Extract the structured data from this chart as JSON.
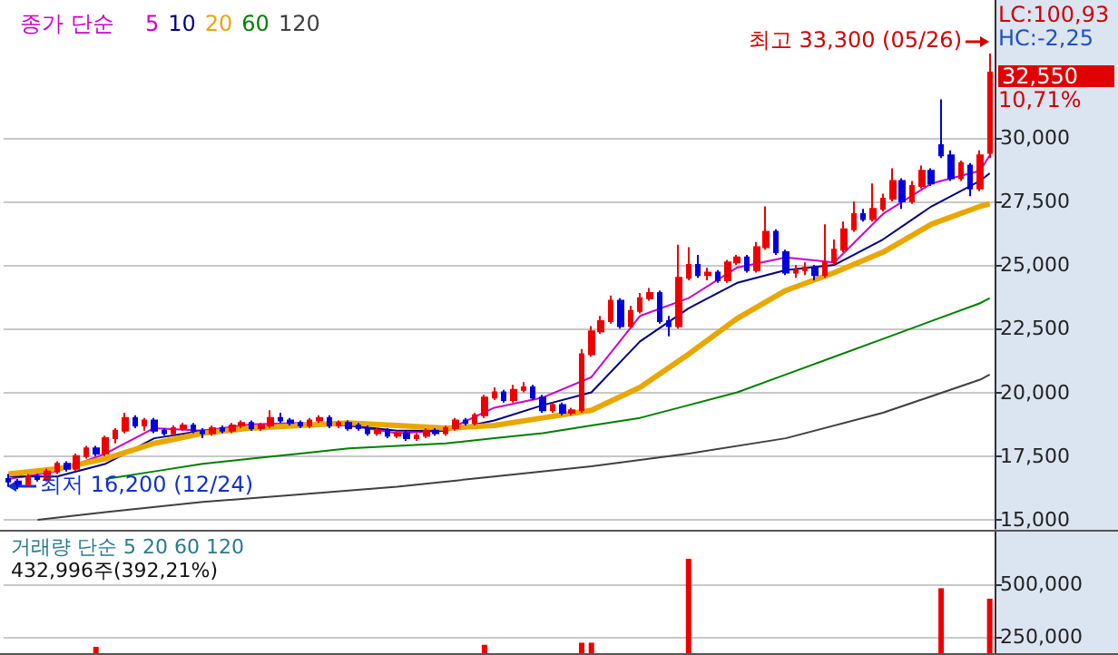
{
  "chart_data": [
    {
      "type": "candlestick",
      "legend_title": "종가 단순",
      "legend": "top left",
      "grid": "y",
      "tick_labels": "y",
      "categories": [
        null,
        null,
        null,
        null,
        null,
        null,
        null,
        null,
        null,
        null,
        null,
        null,
        null,
        null,
        null,
        null,
        null,
        null,
        null,
        null,
        null,
        null,
        null,
        null,
        null,
        null,
        null,
        null,
        null,
        null,
        null,
        null,
        null,
        null,
        null,
        null,
        null,
        null,
        null,
        null,
        null,
        null,
        null,
        null,
        null,
        null,
        null,
        null,
        null,
        null,
        null,
        null,
        null,
        null,
        null,
        null,
        null,
        null,
        null,
        null,
        null,
        null,
        null,
        null,
        null,
        null,
        null,
        null,
        null,
        null,
        null,
        null,
        null,
        null,
        null,
        null,
        null,
        null,
        null,
        null,
        null,
        null,
        null,
        null,
        null,
        null,
        null,
        null,
        null,
        null,
        null,
        null,
        null,
        null,
        null,
        null,
        null,
        null,
        null,
        null,
        null,
        null
      ],
      "ylim": [
        14650,
        35400
      ],
      "yticks": [
        {
          "value": 15000,
          "label": "15,000"
        },
        {
          "value": 17500,
          "label": "17,500"
        },
        {
          "value": 20000,
          "label": "20,000"
        },
        {
          "value": 22500,
          "label": "22,500"
        },
        {
          "value": 25000,
          "label": "25,000"
        },
        {
          "value": 27500,
          "label": "27,500"
        },
        {
          "value": 30000,
          "label": "30,000"
        }
      ],
      "annotations": [
        "LC:100,93",
        "HC:-2,25",
        "32,550",
        "10,71%",
        "최고 33,300 (05/26)",
        "최저 16,200 (12/24)"
      ],
      "series": [
        {
          "type": "candlestick",
          "colors": [
            "#0000dd",
            "#0000dd",
            "#ee0000",
            "#0000dd",
            "#ee0000",
            "#ee0000",
            "#0000dd",
            "#ee0000",
            "#ee0000",
            "#0000dd",
            "#ee0000",
            "#ee0000",
            "#ee0000",
            "#0000dd",
            "#ee0000",
            "#0000dd",
            "#0000dd",
            "#ee0000",
            "#ee0000",
            "#0000dd",
            "#0000dd",
            "#ee0000",
            "#0000dd",
            "#ee0000",
            "#ee0000",
            "#0000dd",
            "#ee0000",
            "#ee0000",
            "#0000dd",
            "#0000dd",
            "#0000dd",
            "#ee0000",
            "#ee0000",
            "#0000dd",
            "#ee0000",
            "#0000dd",
            "#0000dd",
            "#0000dd",
            "#ee0000",
            "#0000dd",
            "#ee0000",
            "#0000dd",
            "#ee0000",
            "#ee0000",
            "#0000dd",
            "#ee0000",
            "#ee0000",
            "#0000dd",
            "#ee0000",
            "#ee0000",
            "#ee0000",
            "#0000dd",
            "#ee0000",
            "#ee0000",
            "#0000dd",
            "#0000dd",
            "#ee0000",
            "#0000dd",
            "#ee0000",
            "#ee0000",
            "#ee0000",
            "#ee0000",
            "#ee0000",
            "#0000dd",
            "#ee0000",
            "#ee0000",
            "#ee0000",
            "#0000dd",
            "#0000dd",
            "#ee0000",
            "#ee0000",
            "#0000dd",
            "#ee0000",
            "#0000dd",
            "#ee0000",
            "#ee0000",
            "#0000dd",
            "#ee0000",
            "#ee0000",
            "#0000dd",
            "#0000dd",
            "#ee0000",
            "#ee0000",
            "#0000dd",
            "#ee0000",
            "#ee0000",
            "#ee0000",
            "#ee0000",
            "#0000dd",
            "#ee0000",
            "#ee0000",
            "#ee0000",
            "#0000dd",
            "#ee0000",
            "#ee0000",
            "#0000dd",
            "#0000dd",
            "#0000dd",
            "#ee0000",
            "#0000dd",
            "#ee0000",
            "#ee0000"
          ],
          "ohlc": [
            [
              16600,
              16800,
              16300,
              16500
            ],
            [
              16500,
              16600,
              16200,
              16400
            ],
            [
              16400,
              16800,
              16300,
              16700
            ],
            [
              16700,
              16800,
              16500,
              16600
            ],
            [
              16600,
              17000,
              16500,
              16900
            ],
            [
              16900,
              17300,
              16800,
              17200
            ],
            [
              17200,
              17300,
              16900,
              17000
            ],
            [
              17000,
              17600,
              16900,
              17500
            ],
            [
              17500,
              17900,
              17400,
              17800
            ],
            [
              17800,
              17900,
              17500,
              17600
            ],
            [
              17600,
              18300,
              17500,
              18200
            ],
            [
              18200,
              18600,
              18000,
              18500
            ],
            [
              18500,
              19200,
              18400,
              19000
            ],
            [
              19000,
              19100,
              18600,
              18700
            ],
            [
              18700,
              19000,
              18500,
              18900
            ],
            [
              18900,
              19000,
              18400,
              18500
            ],
            [
              18500,
              18600,
              18300,
              18400
            ],
            [
              18400,
              18700,
              18300,
              18600
            ],
            [
              18600,
              18800,
              18500,
              18700
            ],
            [
              18700,
              18800,
              18400,
              18500
            ],
            [
              18500,
              18600,
              18200,
              18400
            ],
            [
              18400,
              18700,
              18300,
              18600
            ],
            [
              18600,
              18700,
              18400,
              18500
            ],
            [
              18500,
              18800,
              18400,
              18700
            ],
            [
              18700,
              18900,
              18600,
              18800
            ],
            [
              18800,
              18900,
              18500,
              18600
            ],
            [
              18600,
              18800,
              18500,
              18700
            ],
            [
              18700,
              19300,
              18600,
              19000
            ],
            [
              19000,
              19200,
              18800,
              18900
            ],
            [
              18900,
              19000,
              18700,
              18800
            ],
            [
              18800,
              18900,
              18600,
              18700
            ],
            [
              18700,
              19000,
              18600,
              18900
            ],
            [
              18900,
              19100,
              18800,
              19000
            ],
            [
              19000,
              19100,
              18600,
              18700
            ],
            [
              18700,
              18900,
              18600,
              18800
            ],
            [
              18800,
              18900,
              18500,
              18600
            ],
            [
              18700,
              18800,
              18500,
              18600
            ],
            [
              18600,
              18700,
              18300,
              18400
            ],
            [
              18400,
              18600,
              18300,
              18500
            ],
            [
              18500,
              18600,
              18200,
              18300
            ],
            [
              18300,
              18500,
              18200,
              18400
            ],
            [
              18400,
              18500,
              18100,
              18200
            ],
            [
              18200,
              18400,
              18100,
              18300
            ],
            [
              18300,
              18600,
              18200,
              18500
            ],
            [
              18500,
              18600,
              18300,
              18400
            ],
            [
              18400,
              18700,
              18300,
              18600
            ],
            [
              18600,
              19000,
              18500,
              18900
            ],
            [
              18900,
              19000,
              18700,
              18800
            ],
            [
              18800,
              19200,
              18700,
              19100
            ],
            [
              19100,
              19900,
              19000,
              19800
            ],
            [
              19800,
              20200,
              19700,
              20000
            ],
            [
              20000,
              20100,
              19600,
              19700
            ],
            [
              19700,
              20300,
              19600,
              20100
            ],
            [
              20100,
              20400,
              20000,
              20200
            ],
            [
              20200,
              20300,
              19700,
              19800
            ],
            [
              19800,
              19900,
              19200,
              19300
            ],
            [
              19300,
              19600,
              19200,
              19500
            ],
            [
              19500,
              19600,
              19100,
              19200
            ],
            [
              19200,
              19400,
              19100,
              19300
            ],
            [
              19300,
              21700,
              19200,
              21500
            ],
            [
              21500,
              22600,
              21400,
              22400
            ],
            [
              22400,
              23000,
              22300,
              22800
            ],
            [
              22800,
              23800,
              22700,
              23600
            ],
            [
              23600,
              23700,
              22500,
              22600
            ],
            [
              22600,
              23400,
              22500,
              23200
            ],
            [
              23200,
              23900,
              23100,
              23700
            ],
            [
              23700,
              24100,
              23600,
              23900
            ],
            [
              23900,
              24000,
              22700,
              22800
            ],
            [
              22800,
              23000,
              22200,
              22600
            ],
            [
              22600,
              25800,
              22500,
              24500
            ],
            [
              24500,
              25700,
              24400,
              25000
            ],
            [
              25000,
              25400,
              24500,
              24600
            ],
            [
              24600,
              24900,
              24400,
              24700
            ],
            [
              24700,
              24800,
              24300,
              24400
            ],
            [
              24400,
              25200,
              24300,
              25100
            ],
            [
              25100,
              25400,
              25000,
              25300
            ],
            [
              25300,
              25400,
              24700,
              24800
            ],
            [
              24800,
              25900,
              24700,
              25700
            ],
            [
              25700,
              27300,
              25600,
              26300
            ],
            [
              26300,
              26400,
              25400,
              25500
            ],
            [
              25500,
              25600,
              24600,
              24700
            ],
            [
              24700,
              25000,
              24500,
              24800
            ],
            [
              24800,
              25100,
              24600,
              24900
            ],
            [
              24900,
              25000,
              24400,
              24600
            ],
            [
              24600,
              26600,
              24500,
              25100
            ],
            [
              25100,
              26000,
              25000,
              25600
            ],
            [
              25600,
              26700,
              25500,
              26400
            ],
            [
              26400,
              27500,
              26300,
              27000
            ],
            [
              27000,
              27200,
              26700,
              26800
            ],
            [
              26800,
              28200,
              26700,
              27200
            ],
            [
              27200,
              27800,
              27100,
              27600
            ],
            [
              27600,
              28800,
              27500,
              28300
            ],
            [
              28300,
              28400,
              27200,
              27500
            ],
            [
              27500,
              28300,
              27400,
              28100
            ],
            [
              28100,
              28900,
              28000,
              28700
            ],
            [
              28700,
              28800,
              28100,
              28200
            ],
            [
              29700,
              31500,
              29200,
              29300
            ],
            [
              29300,
              29500,
              28300,
              28400
            ],
            [
              28400,
              29100,
              28300,
              29000
            ],
            [
              28900,
              29000,
              27700,
              28000
            ],
            [
              28000,
              29500,
              27900,
              29300
            ],
            [
              29400,
              33300,
              29200,
              32550
            ]
          ]
        },
        {
          "type": "line",
          "name": "5",
          "color": "#cc00cc",
          "values": [
            16600,
            null,
            null,
            null,
            null,
            16900,
            null,
            null,
            null,
            null,
            17600,
            null,
            null,
            null,
            null,
            18600,
            null,
            null,
            null,
            null,
            18500,
            null,
            null,
            null,
            null,
            18750,
            null,
            null,
            null,
            null,
            18800,
            null,
            null,
            null,
            null,
            18700,
            null,
            null,
            null,
            null,
            18400,
            null,
            null,
            null,
            null,
            18500,
            null,
            null,
            null,
            null,
            19400,
            null,
            null,
            null,
            null,
            19800,
            null,
            null,
            null,
            null,
            20600,
            null,
            null,
            null,
            null,
            23000,
            null,
            null,
            null,
            null,
            23700,
            null,
            null,
            null,
            null,
            24900,
            null,
            null,
            null,
            null,
            25300,
            null,
            null,
            null,
            null,
            25100,
            null,
            null,
            null,
            null,
            27000,
            null,
            null,
            null,
            null,
            28200,
            null,
            null,
            null,
            null,
            28700,
            29300
          ]
        },
        {
          "type": "line",
          "name": "10",
          "color": "#000080",
          "values": [
            16700,
            null,
            null,
            null,
            null,
            16700,
            null,
            null,
            null,
            null,
            17200,
            null,
            null,
            null,
            null,
            18200,
            null,
            null,
            null,
            null,
            18500,
            null,
            null,
            null,
            null,
            18600,
            null,
            null,
            null,
            null,
            18700,
            null,
            null,
            null,
            null,
            18700,
            null,
            null,
            null,
            null,
            18500,
            null,
            null,
            null,
            null,
            18500,
            null,
            null,
            null,
            null,
            18900,
            null,
            null,
            null,
            null,
            19500,
            null,
            null,
            null,
            null,
            20000,
            null,
            null,
            null,
            null,
            22000,
            null,
            null,
            null,
            null,
            23300,
            null,
            null,
            null,
            null,
            24300,
            null,
            null,
            null,
            null,
            24800,
            null,
            null,
            null,
            null,
            25000,
            null,
            null,
            null,
            null,
            26000,
            null,
            null,
            null,
            null,
            27300,
            null,
            null,
            null,
            null,
            28300,
            28600
          ]
        },
        {
          "type": "line",
          "name": "20",
          "color": "#e8a800",
          "values": [
            16800,
            null,
            null,
            null,
            null,
            17000,
            null,
            null,
            null,
            null,
            17400,
            null,
            null,
            null,
            null,
            18000,
            null,
            null,
            null,
            null,
            18400,
            null,
            null,
            null,
            null,
            18600,
            null,
            null,
            null,
            null,
            18700,
            null,
            null,
            null,
            null,
            18800,
            null,
            null,
            null,
            null,
            18700,
            null,
            null,
            null,
            null,
            18600,
            null,
            null,
            null,
            null,
            18700,
            null,
            null,
            null,
            null,
            19000,
            null,
            null,
            null,
            null,
            19300,
            null,
            null,
            null,
            null,
            20200,
            null,
            null,
            null,
            null,
            21500,
            null,
            null,
            null,
            null,
            22900,
            null,
            null,
            null,
            null,
            24000,
            null,
            null,
            null,
            null,
            24700,
            null,
            null,
            null,
            null,
            25500,
            null,
            null,
            null,
            null,
            26600,
            null,
            null,
            null,
            null,
            27300,
            27400
          ]
        },
        {
          "type": "line",
          "name": "60",
          "color": "#008000",
          "values": [
            null,
            null,
            null,
            null,
            null,
            null,
            null,
            null,
            null,
            null,
            16600,
            null,
            null,
            null,
            null,
            16900,
            null,
            null,
            null,
            null,
            17200,
            null,
            null,
            null,
            null,
            17400,
            null,
            null,
            null,
            null,
            17600,
            null,
            null,
            null,
            null,
            17800,
            null,
            null,
            null,
            null,
            17900,
            null,
            null,
            null,
            null,
            18000,
            null,
            null,
            null,
            null,
            18200,
            null,
            null,
            null,
            null,
            18400,
            null,
            null,
            null,
            null,
            18700,
            null,
            null,
            null,
            null,
            19000,
            null,
            null,
            null,
            null,
            19500,
            null,
            null,
            null,
            null,
            20000,
            null,
            null,
            null,
            null,
            20700,
            null,
            null,
            null,
            null,
            21400,
            null,
            null,
            null,
            null,
            22100,
            null,
            null,
            null,
            null,
            22800,
            null,
            null,
            null,
            null,
            23500,
            23700
          ]
        },
        {
          "type": "line",
          "name": "120",
          "color": "#404040",
          "values": [
            null,
            null,
            null,
            15000,
            null,
            null,
            null,
            null,
            null,
            null,
            15300,
            null,
            null,
            null,
            null,
            null,
            null,
            null,
            null,
            null,
            15700,
            null,
            null,
            null,
            null,
            null,
            null,
            null,
            null,
            null,
            16000,
            null,
            null,
            null,
            null,
            null,
            null,
            null,
            null,
            null,
            16300,
            null,
            null,
            null,
            null,
            null,
            null,
            null,
            null,
            null,
            16700,
            null,
            null,
            null,
            null,
            null,
            null,
            null,
            null,
            null,
            17100,
            null,
            null,
            null,
            null,
            null,
            null,
            null,
            null,
            null,
            17600,
            null,
            null,
            null,
            null,
            null,
            null,
            null,
            null,
            null,
            18200,
            null,
            null,
            null,
            null,
            null,
            null,
            null,
            null,
            null,
            19200,
            null,
            null,
            null,
            null,
            null,
            null,
            null,
            null,
            null,
            20500,
            20700
          ]
        }
      ]
    },
    {
      "type": "bar",
      "grid": "y",
      "tick_labels": "y",
      "categories": [
        null,
        null,
        null,
        null,
        null,
        null,
        null,
        null,
        null,
        null,
        null,
        null,
        null,
        null,
        null,
        null,
        null,
        null,
        null,
        null,
        null,
        null,
        null,
        null,
        null,
        null,
        null,
        null,
        null,
        null,
        null,
        null,
        null,
        null,
        null,
        null,
        null,
        null,
        null,
        null,
        null,
        null,
        null,
        null,
        null,
        null,
        null,
        null,
        null,
        null,
        null,
        null,
        null,
        null,
        null,
        null,
        null,
        null,
        null,
        null,
        null,
        null,
        null,
        null,
        null,
        null,
        null,
        null,
        null,
        null,
        null,
        null,
        null,
        null,
        null,
        null,
        null,
        null,
        null,
        null,
        null,
        null,
        null,
        null,
        null,
        null,
        null,
        null,
        null,
        null,
        null,
        null,
        null,
        null,
        null,
        null,
        null,
        null,
        null,
        null,
        null,
        null
      ],
      "ylim": [
        170000,
        750000
      ],
      "yticks": [
        {
          "value": 250000,
          "label": "250,000"
        },
        {
          "value": 500000,
          "label": "500,000"
        }
      ],
      "annotations": [
        "거래량 단순 5 20 60 120",
        "432,996주(392,21%)"
      ],
      "series": [
        {
          "type": "bar",
          "color": "#ee0000",
          "values": [
            null,
            null,
            null,
            null,
            null,
            null,
            null,
            null,
            null,
            200000,
            null,
            null,
            null,
            null,
            null,
            null,
            null,
            null,
            null,
            null,
            null,
            null,
            null,
            null,
            null,
            null,
            null,
            null,
            null,
            null,
            null,
            null,
            null,
            null,
            null,
            null,
            null,
            null,
            null,
            null,
            null,
            null,
            null,
            null,
            null,
            null,
            null,
            null,
            null,
            210000,
            null,
            null,
            null,
            null,
            null,
            null,
            null,
            null,
            null,
            220000,
            220000,
            null,
            null,
            null,
            null,
            null,
            null,
            null,
            null,
            null,
            620000,
            null,
            null,
            null,
            null,
            null,
            null,
            null,
            null,
            null,
            null,
            null,
            null,
            null,
            null,
            null,
            null,
            null,
            null,
            null,
            null,
            null,
            null,
            null,
            null,
            null,
            480000,
            null,
            null,
            null,
            null,
            430000
          ]
        }
      ]
    }
  ]
}
